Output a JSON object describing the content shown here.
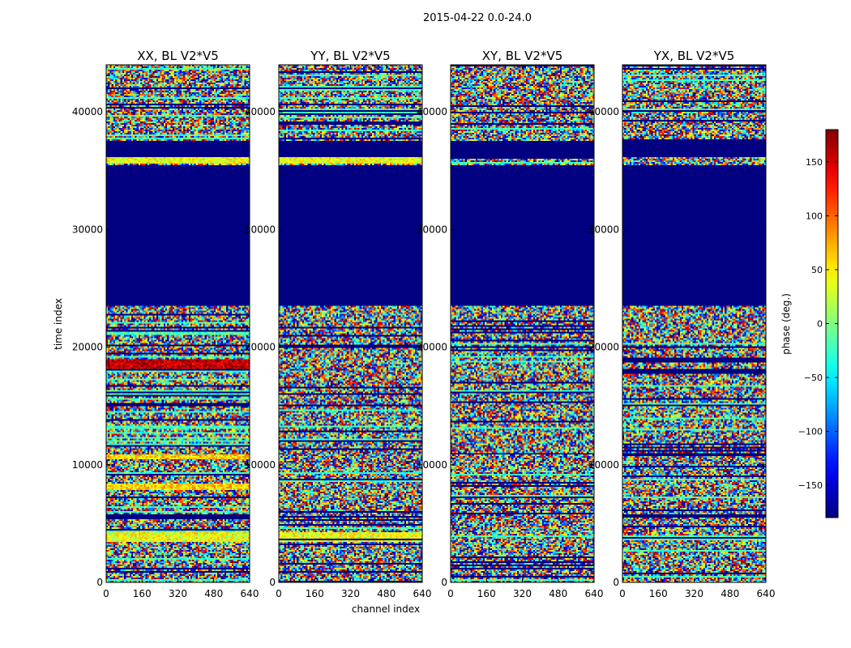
{
  "chart_data": {
    "type": "heatmap",
    "suptitle": "2015-04-22 0.0-24.0",
    "xlabel": "channel index",
    "ylabel": "time index",
    "xlim": [
      0,
      640
    ],
    "ylim": [
      0,
      44000
    ],
    "x_ticks": [
      0,
      160,
      320,
      480,
      640
    ],
    "y_ticks": [
      0,
      10000,
      20000,
      30000,
      40000
    ],
    "y_tick_labels": [
      "0",
      "10000",
      "20000",
      "30000",
      "40000"
    ],
    "panels": [
      {
        "title": "XX, BL V2*V5",
        "notes": "strong red/yellow band around time 18500; yellow bands near 4000, 8000, 10500, 36000"
      },
      {
        "title": "YY, BL V2*V5",
        "notes": "yellow bands near 4000, 36000, 39000"
      },
      {
        "title": "XY, BL V2*V5",
        "notes": "mostly noise; flagged (blue) band"
      },
      {
        "title": "YX, BL V2*V5",
        "notes": "mostly noise; flagged (blue) band"
      }
    ],
    "flagged_time_range": [
      23500,
      35500
    ],
    "flagged_time_ranges_other": [
      [
        36200,
        37500
      ]
    ],
    "flag_value": -180,
    "colorbar": {
      "label": "phase (deg.)",
      "colormap": "jet",
      "vmin": -180,
      "vmax": 180,
      "ticks": [
        -150,
        -100,
        -50,
        0,
        50,
        100,
        150
      ],
      "tick_labels": [
        "−150",
        "−100",
        "−50",
        "0",
        "50",
        "100",
        "150"
      ]
    }
  }
}
